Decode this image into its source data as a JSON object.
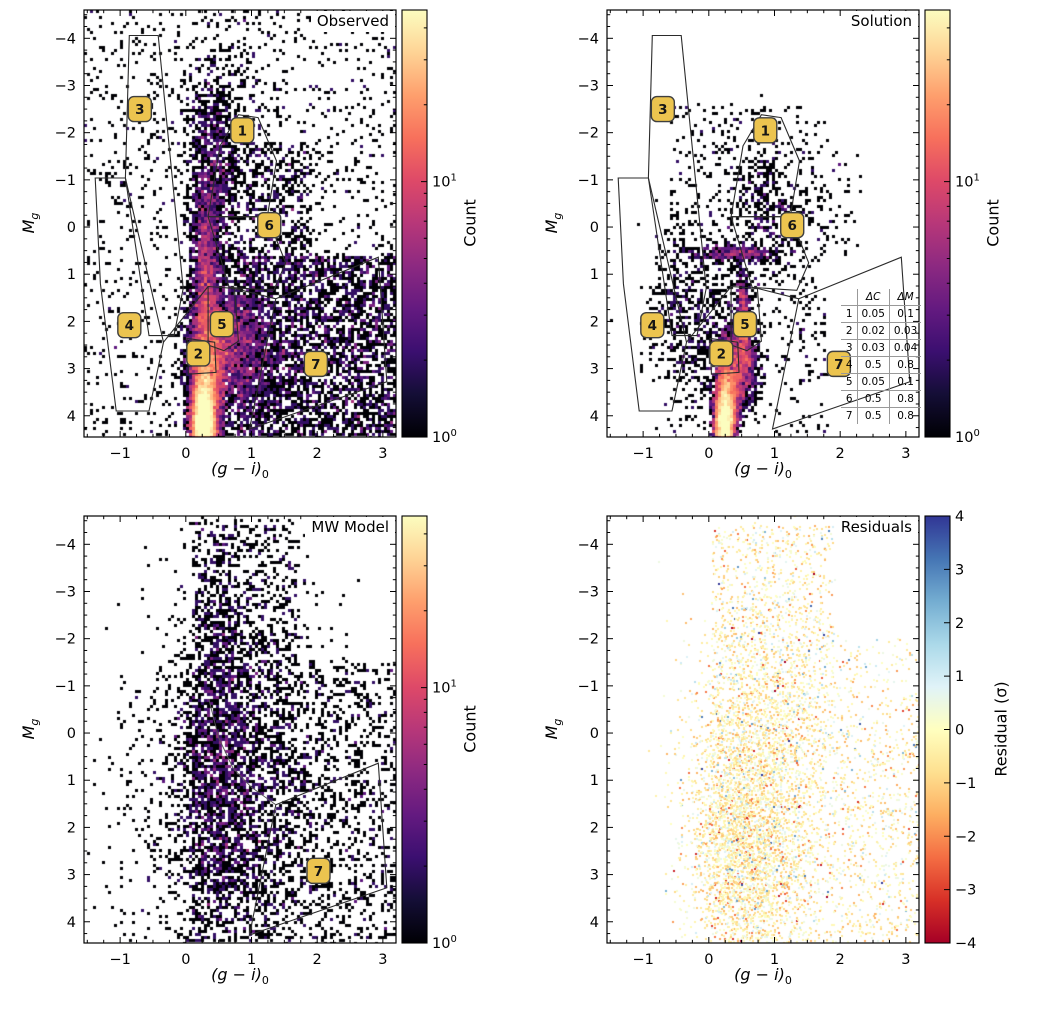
{
  "figure": {
    "background": "#ffffff",
    "frame_color": "#000000",
    "region_line_color": "#2b2b2b",
    "region_box_fill": "#ecc44f",
    "region_box_edge": "#3f3f3f",
    "region_box_text": "#161616"
  },
  "chart_data": [
    {
      "id": "observed",
      "type": "heatmap",
      "render": "hess",
      "title": "Observed",
      "xlabel": "(g − i)_0",
      "xlabel_main": "(g − i)",
      "xlabel_sub": "0",
      "ylabel": "M_g",
      "ylabel_main": "M",
      "ylabel_sub": "g",
      "xlim": [
        -1.55,
        3.2
      ],
      "ylim": [
        4.45,
        -4.6
      ],
      "y_axis_inverted": true,
      "x_ticks": [
        -1,
        0,
        1,
        2,
        3
      ],
      "y_ticks": [
        -4,
        -3,
        -2,
        -1,
        0,
        1,
        2,
        3,
        4
      ],
      "colorbar": {
        "label": "Count",
        "scale": "log",
        "cmap": "magma",
        "vmin": 1,
        "vmax": 47,
        "tick_base": "10",
        "tick_exps": [
          "0",
          "1"
        ],
        "major_ticks": [
          1,
          10
        ],
        "minor_ticks": [
          2,
          3,
          4,
          5,
          6,
          7,
          8,
          9,
          20,
          30,
          40
        ]
      },
      "regions": [
        {
          "label": "1",
          "label_pos": [
            0.86,
            -2.05
          ],
          "points": [
            [
              0.34,
              -0.22
            ],
            [
              0.52,
              -1.72
            ],
            [
              0.8,
              -2.38
            ],
            [
              1.1,
              -2.32
            ],
            [
              1.38,
              -1.4
            ],
            [
              1.24,
              -0.22
            ]
          ]
        },
        {
          "label": "2",
          "label_pos": [
            0.19,
            2.68
          ],
          "points": [
            [
              0.02,
              2.36
            ],
            [
              0.44,
              2.44
            ],
            [
              0.46,
              3.08
            ],
            [
              0.04,
              3.12
            ]
          ]
        },
        {
          "label": "3",
          "label_pos": [
            -0.7,
            -2.5
          ],
          "points": [
            [
              -0.86,
              -4.06
            ],
            [
              -0.42,
              -4.06
            ],
            [
              -0.04,
              1.3
            ],
            [
              -0.18,
              2.3
            ],
            [
              -0.56,
              2.3
            ],
            [
              -0.92,
              -1.04
            ]
          ]
        },
        {
          "label": "4",
          "label_pos": [
            -0.86,
            2.08
          ],
          "points": [
            [
              -1.38,
              -1.04
            ],
            [
              -0.92,
              -1.04
            ],
            [
              -0.34,
              2.44
            ],
            [
              -0.56,
              3.9
            ],
            [
              -1.06,
              3.9
            ],
            [
              -1.3,
              1.2
            ]
          ]
        },
        {
          "label": "5",
          "label_pos": [
            0.55,
            2.06
          ],
          "points": [
            [
              0.34,
              1.26
            ],
            [
              0.74,
              1.3
            ],
            [
              0.8,
              2.42
            ],
            [
              0.58,
              2.62
            ],
            [
              0.34,
              2.5
            ]
          ]
        },
        {
          "label": "6",
          "label_pos": [
            1.27,
            -0.04
          ],
          "points": [
            [
              0.34,
              -0.22
            ],
            [
              1.24,
              -0.22
            ],
            [
              1.52,
              0.76
            ],
            [
              1.34,
              1.34
            ],
            [
              0.66,
              1.28
            ]
          ]
        },
        {
          "label": "7",
          "label_pos": [
            1.98,
            2.9
          ],
          "points": [
            [
              0.97,
              4.28
            ],
            [
              1.37,
              1.52
            ],
            [
              2.93,
              0.64
            ],
            [
              3.06,
              3.28
            ]
          ]
        }
      ],
      "segments": [
        [
          [
            -0.34,
            2.44
          ],
          [
            0.34,
            1.26
          ]
        ],
        [
          [
            0.74,
            1.3
          ],
          [
            1.37,
            1.52
          ]
        ]
      ],
      "density_clusters": [
        {
          "dist": "gauss",
          "cx": 0.27,
          "cy": 4.25,
          "sx": 0.09,
          "sy": 0.55,
          "n": 9000
        },
        {
          "dist": "gauss",
          "cx": 0.34,
          "cy": 3.2,
          "sx": 0.13,
          "sy": 0.8,
          "n": 3600
        },
        {
          "dist": "gauss",
          "cx": 0.55,
          "cy": 2.35,
          "sx": 0.28,
          "sy": 0.55,
          "n": 1700
        },
        {
          "dist": "gauss",
          "cx": 0.3,
          "cy": 1.2,
          "sx": 0.11,
          "sy": 1.1,
          "n": 1700
        },
        {
          "dist": "gauss",
          "cx": 0.36,
          "cy": -0.9,
          "sx": 0.16,
          "sy": 1.1,
          "n": 800
        },
        {
          "dist": "gauss",
          "cx": 0.55,
          "cy": -2.5,
          "sx": 0.35,
          "sy": 1.0,
          "n": 320
        },
        {
          "dist": "gauss",
          "cx": 0.75,
          "cy": 2.9,
          "sx": 0.35,
          "sy": 0.9,
          "n": 1100
        },
        {
          "dist": "uniform",
          "x0": 0.8,
          "x1": 3.2,
          "y0": 0.6,
          "y1": 4.45,
          "n": 3000
        },
        {
          "dist": "uniform",
          "x0": -1.55,
          "x1": 3.2,
          "y0": -4.6,
          "y1": 4.45,
          "n": 1500
        },
        {
          "dist": "uniform",
          "x0": 0.5,
          "x1": 1.9,
          "y0": -1.8,
          "y1": 0.8,
          "n": 600
        }
      ]
    },
    {
      "id": "solution",
      "type": "heatmap",
      "render": "hess",
      "title": "Solution",
      "xlabel": "(g − i)_0",
      "xlabel_main": "(g − i)",
      "xlabel_sub": "0",
      "ylabel": "M_g",
      "ylabel_main": "M",
      "ylabel_sub": "g",
      "xlim": [
        -1.55,
        3.2
      ],
      "ylim": [
        4.45,
        -4.6
      ],
      "y_axis_inverted": true,
      "x_ticks": [
        -1,
        0,
        1,
        2,
        3
      ],
      "y_ticks": [
        -4,
        -3,
        -2,
        -1,
        0,
        1,
        2,
        3,
        4
      ],
      "colorbar": {
        "label": "Count",
        "scale": "log",
        "cmap": "magma",
        "vmin": 1,
        "vmax": 47,
        "tick_base": "10",
        "tick_exps": [
          "0",
          "1"
        ],
        "major_ticks": [
          1,
          10
        ],
        "minor_ticks": [
          2,
          3,
          4,
          5,
          6,
          7,
          8,
          9,
          20,
          30,
          40
        ]
      },
      "table": {
        "col_headers": [
          "ΔC",
          "ΔM"
        ],
        "rows": [
          {
            "label": "1",
            "dc": "0.05",
            "dm": "0.1"
          },
          {
            "label": "2",
            "dc": "0.02",
            "dm": "0.03"
          },
          {
            "label": "3",
            "dc": "0.03",
            "dm": "0.04"
          },
          {
            "label": "4",
            "dc": "0.5",
            "dm": "0.8"
          },
          {
            "label": "5",
            "dc": "0.05",
            "dm": "0.1"
          },
          {
            "label": "6",
            "dc": "0.5",
            "dm": "0.8"
          },
          {
            "label": "7",
            "dc": "0.5",
            "dm": "0.8"
          }
        ]
      },
      "regions": [
        {
          "label": "1",
          "label_pos": [
            0.86,
            -2.05
          ],
          "points": [
            [
              0.34,
              -0.22
            ],
            [
              0.52,
              -1.72
            ],
            [
              0.8,
              -2.38
            ],
            [
              1.1,
              -2.32
            ],
            [
              1.38,
              -1.4
            ],
            [
              1.24,
              -0.22
            ]
          ]
        },
        {
          "label": "2",
          "label_pos": [
            0.19,
            2.68
          ],
          "points": [
            [
              0.02,
              2.36
            ],
            [
              0.44,
              2.44
            ],
            [
              0.46,
              3.08
            ],
            [
              0.04,
              3.12
            ]
          ]
        },
        {
          "label": "3",
          "label_pos": [
            -0.7,
            -2.5
          ],
          "points": [
            [
              -0.86,
              -4.06
            ],
            [
              -0.42,
              -4.06
            ],
            [
              -0.04,
              1.3
            ],
            [
              -0.18,
              2.3
            ],
            [
              -0.56,
              2.3
            ],
            [
              -0.92,
              -1.04
            ]
          ]
        },
        {
          "label": "4",
          "label_pos": [
            -0.86,
            2.08
          ],
          "points": [
            [
              -1.38,
              -1.04
            ],
            [
              -0.92,
              -1.04
            ],
            [
              -0.34,
              2.44
            ],
            [
              -0.56,
              3.9
            ],
            [
              -1.06,
              3.9
            ],
            [
              -1.3,
              1.2
            ]
          ]
        },
        {
          "label": "5",
          "label_pos": [
            0.55,
            2.06
          ],
          "points": [
            [
              0.34,
              1.26
            ],
            [
              0.74,
              1.3
            ],
            [
              0.8,
              2.42
            ],
            [
              0.58,
              2.62
            ],
            [
              0.34,
              2.5
            ]
          ]
        },
        {
          "label": "6",
          "label_pos": [
            1.27,
            -0.04
          ],
          "points": [
            [
              0.34,
              -0.22
            ],
            [
              1.24,
              -0.22
            ],
            [
              1.52,
              0.76
            ],
            [
              1.34,
              1.34
            ],
            [
              0.66,
              1.28
            ]
          ]
        },
        {
          "label": "7",
          "label_pos": [
            1.98,
            2.9
          ],
          "points": [
            [
              0.97,
              4.28
            ],
            [
              1.37,
              1.52
            ],
            [
              2.93,
              0.64
            ],
            [
              3.06,
              3.28
            ]
          ]
        }
      ],
      "segments": [
        [
          [
            -0.34,
            2.44
          ],
          [
            0.34,
            1.26
          ]
        ],
        [
          [
            0.74,
            1.3
          ],
          [
            1.37,
            1.52
          ]
        ]
      ],
      "density_clusters": [
        {
          "dist": "gauss",
          "cx": 0.24,
          "cy": 4.25,
          "sx": 0.08,
          "sy": 0.5,
          "n": 5500
        },
        {
          "dist": "gauss",
          "cx": 0.3,
          "cy": 3.3,
          "sx": 0.1,
          "sy": 0.55,
          "n": 1900
        },
        {
          "dist": "gauss",
          "cx": 0.55,
          "cy": 2.9,
          "sx": 0.1,
          "sy": 0.45,
          "n": 800
        },
        {
          "dist": "gauss",
          "cx": 0.52,
          "cy": 2.0,
          "sx": 0.05,
          "sy": 0.5,
          "n": 550
        },
        {
          "dist": "gauss",
          "cx": 0.42,
          "cy": 0.55,
          "sx": 0.33,
          "sy": 0.08,
          "n": 330
        },
        {
          "dist": "gauss",
          "cx": 0.8,
          "cy": -0.5,
          "sx": 0.28,
          "sy": 0.85,
          "n": 380
        },
        {
          "dist": "gauss",
          "cx": 0.0,
          "cy": 2.1,
          "sx": 0.3,
          "sy": 1.1,
          "n": 380
        },
        {
          "dist": "gauss",
          "cx": -0.55,
          "cy": 1.7,
          "sx": 0.25,
          "sy": 0.95,
          "n": 230
        },
        {
          "dist": "uniform",
          "x0": -0.6,
          "x1": 1.8,
          "y0": -2.6,
          "y1": 4.4,
          "n": 650
        },
        {
          "dist": "uniform",
          "x0": 1.3,
          "x1": 2.3,
          "y0": -1.6,
          "y1": 0.6,
          "n": 90
        }
      ]
    },
    {
      "id": "mw-model",
      "type": "heatmap",
      "render": "hess",
      "title": "MW Model",
      "xlabel": "(g − i)_0",
      "xlabel_main": "(g − i)",
      "xlabel_sub": "0",
      "ylabel": "M_g",
      "ylabel_main": "M",
      "ylabel_sub": "g",
      "xlim": [
        -1.55,
        3.2
      ],
      "ylim": [
        4.45,
        -4.6
      ],
      "y_axis_inverted": true,
      "x_ticks": [
        -1,
        0,
        1,
        2,
        3
      ],
      "y_ticks": [
        -4,
        -3,
        -2,
        -1,
        0,
        1,
        2,
        3,
        4
      ],
      "colorbar": {
        "label": "Count",
        "scale": "log",
        "cmap": "magma",
        "vmin": 1,
        "vmax": 47,
        "tick_base": "10",
        "tick_exps": [
          "0",
          "1"
        ],
        "major_ticks": [
          1,
          10
        ],
        "minor_ticks": [
          2,
          3,
          4,
          5,
          6,
          7,
          8,
          9,
          20,
          30,
          40
        ]
      },
      "regions": [
        {
          "label": "7",
          "label_pos": [
            2.02,
            2.92
          ],
          "points": [
            [
              0.97,
              4.28
            ],
            [
              1.37,
              1.52
            ],
            [
              2.93,
              0.64
            ],
            [
              3.06,
              3.28
            ]
          ]
        }
      ],
      "curves": [
        [
          [
            0.35,
            -0.72
          ],
          [
            0.5,
            0.1
          ],
          [
            0.72,
            0.75
          ],
          [
            1.0,
            1.15
          ],
          [
            1.37,
            1.52
          ]
        ]
      ],
      "density_clusters": [
        {
          "dist": "gauss",
          "cx": 0.8,
          "cy": 1.2,
          "sx": 0.75,
          "sy": 2.2,
          "n": 2300
        },
        {
          "dist": "gauss",
          "cx": 0.5,
          "cy": 0.2,
          "sx": 0.28,
          "sy": 2.0,
          "n": 1200
        },
        {
          "dist": "uniform",
          "x0": 0.05,
          "x1": 3.2,
          "y0": -1.5,
          "y1": 4.45,
          "n": 1700
        },
        {
          "dist": "uniform",
          "x0": 0.1,
          "x1": 1.7,
          "y0": -4.5,
          "y1": -1.5,
          "n": 520
        },
        {
          "dist": "uniform",
          "x0": -1.2,
          "x1": 0.05,
          "y0": -1.0,
          "y1": 4.4,
          "n": 60
        }
      ]
    },
    {
      "id": "residuals",
      "type": "scatter",
      "render": "scatter",
      "title": "Residuals",
      "xlabel": "(g − i)_0",
      "xlabel_main": "(g − i)",
      "xlabel_sub": "0",
      "ylabel": "M_g",
      "ylabel_main": "M",
      "ylabel_sub": "g",
      "xlim": [
        -1.55,
        3.2
      ],
      "ylim": [
        4.45,
        -4.6
      ],
      "y_axis_inverted": true,
      "x_ticks": [
        -1,
        0,
        1,
        2,
        3
      ],
      "y_ticks": [
        -4,
        -3,
        -2,
        -1,
        0,
        1,
        2,
        3,
        4
      ],
      "colorbar": {
        "label": "Residual (σ)",
        "scale": "linear",
        "cmap": "rdylbu",
        "vmin": -4,
        "vmax": 4,
        "ticks": [
          4,
          3,
          2,
          1,
          0,
          -1,
          -2,
          -3,
          -4
        ]
      },
      "residual_value": {
        "mean": -0.3,
        "sigma": 0.75,
        "outlier_frac": 0.04,
        "outlier_sigma": 0.9
      },
      "density_clusters": [
        {
          "dist": "gauss",
          "cx": 0.55,
          "cy": 2.6,
          "sx": 0.45,
          "sy": 1.2,
          "n": 2200
        },
        {
          "dist": "gauss",
          "cx": 0.75,
          "cy": 0.2,
          "sx": 0.55,
          "sy": 1.6,
          "n": 1700
        },
        {
          "dist": "uniform",
          "x0": 0.0,
          "x1": 3.2,
          "y0": 0.0,
          "y1": 4.45,
          "n": 1700
        },
        {
          "dist": "uniform",
          "x0": 0.05,
          "x1": 1.9,
          "y0": -4.4,
          "y1": 0.0,
          "n": 1100
        },
        {
          "dist": "uniform",
          "x0": 1.9,
          "x1": 3.2,
          "y0": -2.0,
          "y1": 0.0,
          "n": 160
        }
      ]
    }
  ]
}
